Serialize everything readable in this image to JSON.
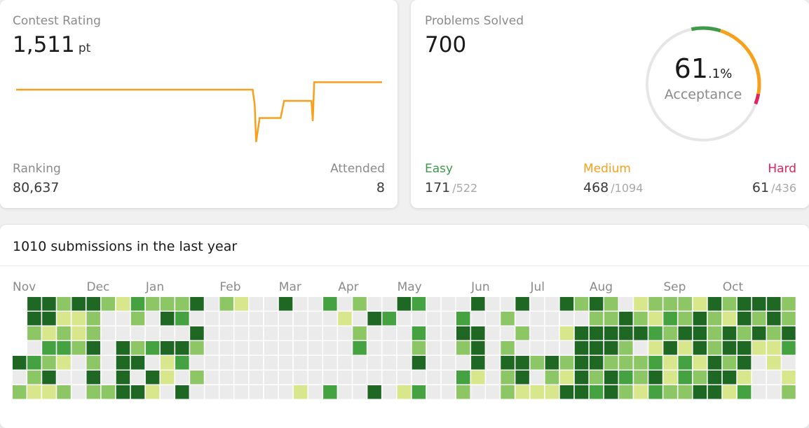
{
  "rating_card": {
    "title": "Contest Rating",
    "rating": "1,511",
    "unit": "pt",
    "ranking_label": "Ranking",
    "ranking": "80,637",
    "attended_label": "Attended",
    "attended": "8",
    "history": {
      "x": [
        0,
        338,
        341,
        343,
        348,
        378,
        383,
        422,
        424,
        426,
        523
      ],
      "values": [
        1500,
        1500,
        1480,
        1430,
        1462,
        1462,
        1485,
        1485,
        1458,
        1510,
        1510
      ],
      "xlim": [
        0,
        523
      ],
      "ylim": [
        1425,
        1515
      ],
      "color": "#f89f1b"
    }
  },
  "solved_card": {
    "title": "Problems Solved",
    "solved": "700",
    "acceptance_whole": "61",
    "acceptance_fraction": ".1%",
    "acceptance_label": "Acceptance",
    "separator": "/",
    "difficulties": [
      {
        "name": "Easy",
        "solved": 171,
        "total": 522,
        "color": "#3e9a4a"
      },
      {
        "name": "Medium",
        "solved": 468,
        "total": 1094,
        "color": "#f89f1b"
      },
      {
        "name": "Hard",
        "solved": 61,
        "total": 436,
        "color": "#e0245e"
      }
    ]
  },
  "heatmap": {
    "title": "1010 submissions in the last year",
    "months": [
      "Nov",
      "Dec",
      "Jan",
      "Feb",
      "Mar",
      "Apr",
      "May",
      "Jun",
      "Jul",
      "Aug",
      "Sep",
      "Oct"
    ],
    "colors": [
      "#ebebeb",
      "#d8e68c",
      "#8cc665",
      "#44a340",
      "#1e6823"
    ],
    "levels": [
      [
        null,
        4,
        4,
        2,
        4,
        4,
        2,
        1,
        3,
        2,
        2,
        2,
        4,
        0,
        2,
        1,
        0,
        0,
        4,
        0,
        0,
        3,
        0,
        2,
        0,
        0,
        4,
        3,
        0,
        0,
        0,
        4,
        0,
        0,
        4,
        0,
        0,
        4,
        2,
        4,
        2,
        0,
        1,
        2,
        2,
        2,
        1,
        4,
        2,
        4,
        4,
        4,
        2
      ],
      [
        null,
        4,
        4,
        1,
        1,
        2,
        0,
        0,
        2,
        0,
        4,
        3,
        0,
        0,
        0,
        0,
        0,
        0,
        0,
        0,
        0,
        0,
        1,
        0,
        4,
        3,
        0,
        0,
        0,
        0,
        3,
        0,
        0,
        2,
        0,
        0,
        0,
        0,
        0,
        2,
        2,
        4,
        2,
        1,
        3,
        2,
        4,
        2,
        1,
        4,
        2,
        4,
        2
      ],
      [
        null,
        2,
        1,
        2,
        1,
        2,
        0,
        0,
        0,
        0,
        0,
        0,
        4,
        0,
        0,
        0,
        0,
        0,
        0,
        0,
        0,
        0,
        0,
        2,
        0,
        0,
        0,
        3,
        0,
        0,
        4,
        4,
        0,
        0,
        2,
        0,
        0,
        1,
        4,
        4,
        4,
        4,
        4,
        3,
        2,
        4,
        4,
        2,
        4,
        2,
        4,
        2,
        4
      ],
      [
        null,
        0,
        3,
        3,
        2,
        4,
        0,
        4,
        2,
        3,
        4,
        4,
        2,
        0,
        0,
        0,
        0,
        0,
        0,
        0,
        0,
        0,
        0,
        3,
        0,
        0,
        0,
        2,
        0,
        0,
        2,
        4,
        0,
        2,
        0,
        0,
        0,
        0,
        4,
        4,
        4,
        2,
        0,
        1,
        4,
        1,
        4,
        2,
        4,
        4,
        1,
        1,
        3
      ],
      [
        4,
        3,
        2,
        1,
        0,
        2,
        0,
        4,
        4,
        0,
        1,
        3,
        0,
        0,
        0,
        0,
        0,
        0,
        0,
        0,
        0,
        0,
        0,
        0,
        0,
        0,
        0,
        4,
        0,
        0,
        0,
        4,
        0,
        4,
        4,
        2,
        4,
        2,
        4,
        4,
        2,
        2,
        2,
        3,
        1,
        3,
        1,
        4,
        2,
        4,
        0,
        1,
        0
      ],
      [
        0,
        2,
        4,
        0,
        0,
        4,
        0,
        4,
        0,
        4,
        1,
        0,
        2,
        0,
        0,
        0,
        0,
        0,
        0,
        0,
        0,
        0,
        0,
        0,
        0,
        0,
        0,
        0,
        0,
        0,
        3,
        1,
        0,
        2,
        4,
        0,
        2,
        1,
        4,
        2,
        4,
        3,
        2,
        4,
        1,
        3,
        2,
        4,
        4,
        1,
        0,
        0,
        1
      ],
      [
        2,
        1,
        1,
        2,
        0,
        2,
        2,
        4,
        4,
        1,
        0,
        4,
        0,
        0,
        0,
        0,
        0,
        0,
        0,
        1,
        0,
        3,
        0,
        0,
        4,
        0,
        1,
        3,
        0,
        0,
        2,
        0,
        0,
        2,
        1,
        1,
        1,
        4,
        4,
        3,
        4,
        2,
        1,
        3,
        2,
        2,
        4,
        4,
        1,
        3,
        0,
        0,
        2
      ]
    ]
  }
}
